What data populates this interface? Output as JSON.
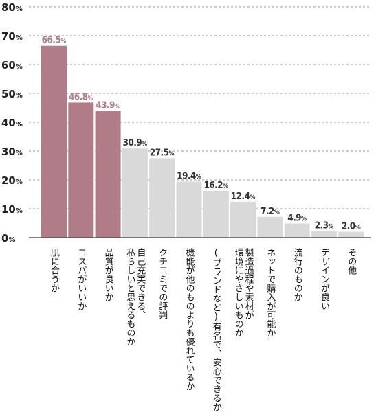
{
  "chart_data": {
    "type": "bar",
    "categories": [
      [
        "肌に合うか"
      ],
      [
        "コスパがいいか"
      ],
      [
        "品質が良いか"
      ],
      [
        "自己充実できる、",
        "私らしいと思えるものか"
      ],
      [
        "クチコミでの評判"
      ],
      [
        "機能が他のものよりも優れているか"
      ],
      [
        "(ブランドなど)有名で、安心できるか"
      ],
      [
        "製造過程や素材が",
        "環境にやさしいものか"
      ],
      [
        "ネットで購入が可能か"
      ],
      [
        "流行のものか"
      ],
      [
        "デザインが良い"
      ],
      [
        "その他"
      ]
    ],
    "values": [
      66.5,
      46.8,
      43.9,
      30.9,
      27.5,
      19.4,
      16.2,
      12.4,
      7.2,
      4.9,
      2.3,
      2.0
    ],
    "value_labels": [
      "66.5%",
      "46.8%",
      "43.9%",
      "30.9%",
      "27.5%",
      "19.4%",
      "16.2%",
      "12.4%",
      "7.2%",
      "4.9%",
      "2.3%",
      "2.0%"
    ],
    "highlight_count": 3,
    "ylim": [
      0,
      80
    ],
    "yticks": [
      0,
      10,
      20,
      30,
      40,
      50,
      60,
      70,
      80
    ],
    "ytick_labels": [
      "0%",
      "10%",
      "20%",
      "30%",
      "40%",
      "50%",
      "60%",
      "70%",
      "80%"
    ],
    "grid": "dashed horizontal",
    "colors": {
      "highlight_bar": "#b07c88",
      "normal_bar": "#d9d9d9",
      "highlight_label": "#b07c88",
      "normal_label": "#333333",
      "grid": "#999999",
      "axis": "#555555"
    }
  }
}
